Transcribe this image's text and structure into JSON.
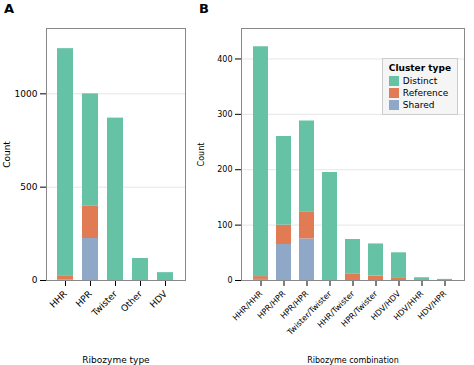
{
  "chart_data": [
    {
      "type": "bar",
      "stacked": true,
      "title": "A",
      "categories": [
        "HHR",
        "HPR",
        "Twister",
        "Other",
        "HDV"
      ],
      "series": [
        {
          "name": "Shared",
          "color": "#8FA8C8",
          "values": [
            4,
            225,
            0,
            0,
            0
          ]
        },
        {
          "name": "Reference",
          "color": "#E07B54",
          "values": [
            18,
            175,
            0,
            0,
            0
          ]
        },
        {
          "name": "Distinct",
          "color": "#66C2A5",
          "values": [
            1220,
            600,
            870,
            118,
            42
          ]
        }
      ],
      "xlabel": "Ribozyme type",
      "ylabel": "Count",
      "ylim": [
        0,
        1350
      ],
      "yticks": [
        0,
        500,
        1000
      ],
      "grid": true
    },
    {
      "type": "bar",
      "stacked": true,
      "title": "B",
      "categories": [
        "HHR/HHR",
        "HPR/HPR",
        "HPR/HPR",
        "Twister/Twister",
        "HHR/Twister",
        "HPR/Twister",
        "HDV/HDV",
        "HDV/HHR",
        "HDV/HPR"
      ],
      "series": [
        {
          "name": "Shared",
          "color": "#8FA8C8",
          "values": [
            2,
            65,
            75,
            0,
            0,
            0,
            0,
            0,
            0
          ]
        },
        {
          "name": "Reference",
          "color": "#E07B54",
          "values": [
            5,
            35,
            48,
            0,
            12,
            8,
            5,
            0,
            0
          ]
        },
        {
          "name": "Distinct",
          "color": "#66C2A5",
          "values": [
            415,
            160,
            165,
            195,
            62,
            58,
            45,
            5,
            2
          ]
        }
      ],
      "xlabel": "Ribozyme combination",
      "ylabel": "Count",
      "ylim": [
        0,
        455
      ],
      "yticks": [
        0,
        100,
        200,
        300,
        400
      ],
      "grid": true,
      "legend": "upper right",
      "legend_title": "Cluster type"
    }
  ]
}
